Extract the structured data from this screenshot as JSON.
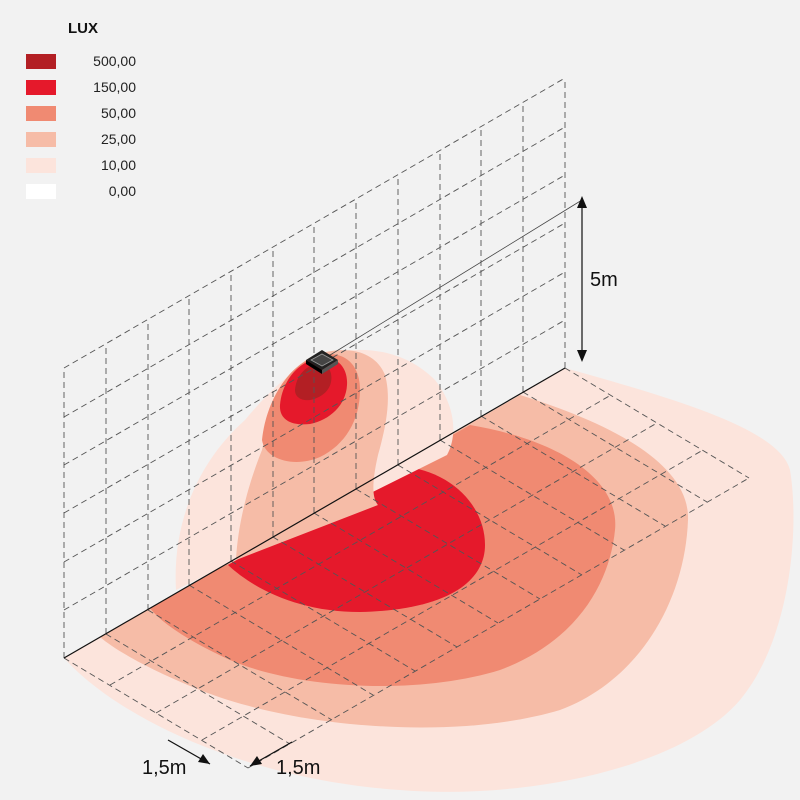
{
  "legend": {
    "title": "LUX",
    "items": [
      {
        "label": "500,00",
        "color": "#b31f24"
      },
      {
        "label": "150,00",
        "color": "#e5192b"
      },
      {
        "label": "50,00",
        "color": "#f08a72"
      },
      {
        "label": "25,00",
        "color": "#f6bca7"
      },
      {
        "label": "10,00",
        "color": "#fce4dc"
      },
      {
        "label": "0,00",
        "color": "#ffffff"
      }
    ]
  },
  "dimensions": {
    "height": "5m",
    "spacing_a": "1,5m",
    "spacing_b": "1,5m"
  },
  "luminaire": {
    "icon": "wall-light-icon"
  }
}
